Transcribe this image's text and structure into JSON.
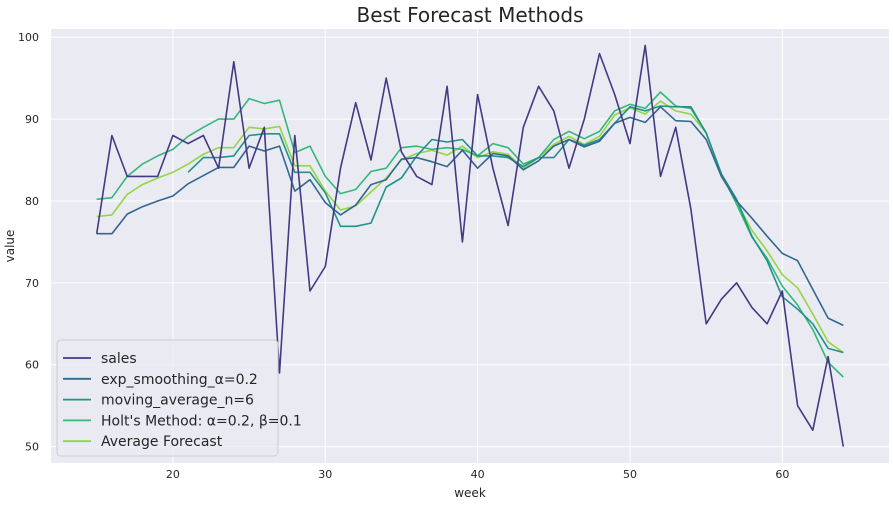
{
  "chart_data": {
    "type": "line",
    "title": "Best Forecast Methods",
    "xlabel": "week",
    "ylabel": "value",
    "xlim": [
      12,
      67
    ],
    "ylim": [
      48,
      101
    ],
    "xticks": [
      20,
      30,
      40,
      50,
      60
    ],
    "yticks": [
      50,
      60,
      70,
      80,
      90,
      100
    ],
    "grid": true,
    "legend_position": "lower-left",
    "colors": {
      "background": "#eaeaf2",
      "grid": "#ffffff",
      "sales": "#443983",
      "exp_smoothing": "#31688e",
      "moving_average": "#21918c",
      "holt": "#35b779",
      "average": "#90d743"
    },
    "series": [
      {
        "name": "sales",
        "color": "#443983",
        "x": [
          15,
          16,
          17,
          18,
          19,
          20,
          21,
          22,
          23,
          24,
          25,
          26,
          27,
          28,
          29,
          30,
          31,
          32,
          33,
          34,
          35,
          36,
          37,
          38,
          39,
          40,
          41,
          42,
          43,
          44,
          45,
          46,
          47,
          48,
          49,
          50,
          51,
          52,
          53,
          54,
          55,
          56,
          57,
          58,
          59,
          60,
          61,
          62,
          63,
          64
        ],
        "values": [
          76,
          88,
          83,
          83,
          83,
          88,
          87,
          88,
          84,
          97,
          84,
          89,
          59,
          88,
          69,
          72,
          84,
          92,
          85,
          95,
          86,
          83,
          82,
          94,
          75,
          93,
          84,
          77,
          89,
          94,
          91,
          84,
          90,
          98,
          93,
          87,
          99,
          83,
          89,
          79,
          65,
          68,
          70,
          67,
          65,
          69,
          55,
          52,
          61,
          50
        ]
      },
      {
        "name": "exp_smoothing_α=0.2",
        "color": "#31688e",
        "x": [
          15,
          16,
          17,
          18,
          19,
          20,
          21,
          22,
          23,
          24,
          25,
          26,
          27,
          28,
          29,
          30,
          31,
          32,
          33,
          34,
          35,
          36,
          37,
          38,
          39,
          40,
          41,
          42,
          43,
          44,
          45,
          46,
          47,
          48,
          49,
          50,
          51,
          52,
          53,
          54,
          55,
          56,
          57,
          58,
          59,
          60,
          61,
          62,
          63,
          64
        ],
        "values": [
          76,
          76,
          78.4,
          79.3,
          80.0,
          80.6,
          82.1,
          83.1,
          84.1,
          84.1,
          86.7,
          86.1,
          86.7,
          81.2,
          82.6,
          79.8,
          78.3,
          79.5,
          82.0,
          82.6,
          85.1,
          85.3,
          84.8,
          84.2,
          86.2,
          84.0,
          85.8,
          85.5,
          83.8,
          84.9,
          86.7,
          87.5,
          86.6,
          87.3,
          89.5,
          90.2,
          89.6,
          91.5,
          89.8,
          89.7,
          87.5,
          83.0,
          80.0,
          77.9,
          75.7,
          73.6,
          72.7,
          69.2,
          65.7,
          64.8
        ]
      },
      {
        "name": "moving_average_n=6",
        "color": "#21918c",
        "x": [
          21,
          22,
          23,
          24,
          25,
          26,
          27,
          28,
          29,
          30,
          31,
          32,
          33,
          34,
          35,
          36,
          37,
          38,
          39,
          40,
          41,
          42,
          43,
          44,
          45,
          46,
          47,
          48,
          49,
          50,
          51,
          52,
          53,
          54,
          55,
          56,
          57,
          58,
          59,
          60,
          61,
          62,
          63,
          64
        ],
        "values": [
          83.5,
          85.3,
          85.3,
          85.5,
          88.0,
          88.2,
          88.2,
          83.5,
          83.5,
          81.0,
          76.9,
          76.9,
          77.3,
          81.7,
          82.8,
          85.5,
          87.5,
          87.2,
          87.5,
          85.5,
          85.5,
          85.3,
          84.2,
          85.3,
          85.3,
          87.5,
          86.8,
          87.5,
          89.5,
          91.5,
          91.0,
          91.6,
          91.5,
          91.5,
          88.3,
          83.3,
          80.2,
          75.7,
          72.7,
          68.3,
          66.8,
          65.0,
          62.0,
          61.5
        ]
      },
      {
        "name": "Holt's Method: α=0.2, β=0.1",
        "color": "#35b779",
        "x": [
          15,
          16,
          17,
          18,
          19,
          20,
          21,
          22,
          23,
          24,
          25,
          26,
          27,
          28,
          29,
          30,
          31,
          32,
          33,
          34,
          35,
          36,
          37,
          38,
          39,
          40,
          41,
          42,
          43,
          44,
          45,
          46,
          47,
          48,
          49,
          50,
          51,
          52,
          53,
          54,
          55,
          56,
          57,
          58,
          59,
          60,
          61,
          62,
          63,
          64
        ],
        "values": [
          80.2,
          80.4,
          83.0,
          84.5,
          85.5,
          86.3,
          87.9,
          89.0,
          90.0,
          90.0,
          92.5,
          91.9,
          92.3,
          85.9,
          86.7,
          83.0,
          80.9,
          81.4,
          83.6,
          84.0,
          86.5,
          86.7,
          86.3,
          86.5,
          86.3,
          85.5,
          87.0,
          86.5,
          84.5,
          85.3,
          87.5,
          88.5,
          87.6,
          88.5,
          91.0,
          91.8,
          91.3,
          93.3,
          91.6,
          91.3,
          88.3,
          83.3,
          79.6,
          75.6,
          73.0,
          69.6,
          67.3,
          64.3,
          60.3,
          58.5
        ]
      },
      {
        "name": "Average Forecast",
        "color": "#90d743",
        "x": [
          15,
          16,
          17,
          18,
          19,
          20,
          21,
          22,
          23,
          24,
          25,
          26,
          27,
          28,
          29,
          30,
          31,
          32,
          33,
          34,
          35,
          36,
          37,
          38,
          39,
          40,
          41,
          42,
          43,
          44,
          45,
          46,
          47,
          48,
          49,
          50,
          51,
          52,
          53,
          54,
          55,
          56,
          57,
          58,
          59,
          60,
          61,
          62,
          63,
          64
        ],
        "values": [
          78.1,
          78.3,
          80.8,
          82.0,
          82.8,
          83.5,
          84.5,
          85.7,
          86.5,
          86.5,
          89.0,
          88.8,
          89.1,
          84.3,
          84.3,
          81.2,
          78.9,
          79.4,
          81.1,
          82.8,
          85.0,
          85.8,
          86.2,
          85.6,
          86.7,
          85.3,
          86.0,
          85.7,
          84.0,
          85.3,
          86.9,
          87.9,
          86.9,
          87.9,
          90.5,
          91.4,
          90.6,
          92.2,
          91.0,
          90.6,
          88.3,
          83.2,
          79.9,
          76.4,
          73.9,
          71.0,
          69.4,
          66.2,
          62.8,
          61.5
        ]
      }
    ]
  }
}
